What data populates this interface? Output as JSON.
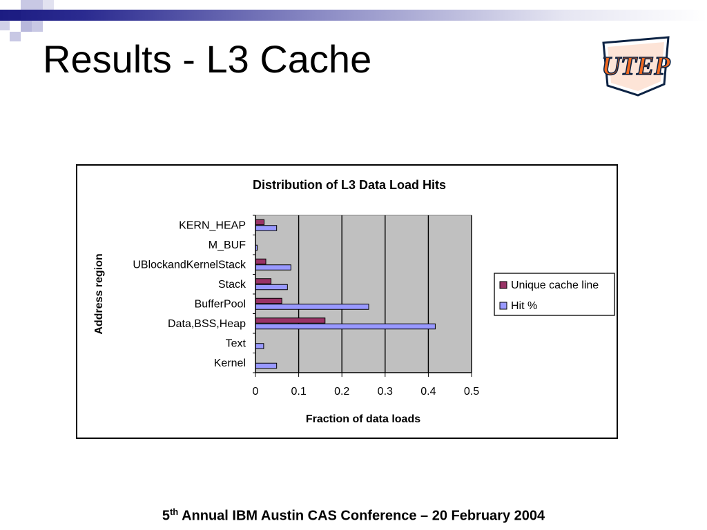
{
  "slide": {
    "title": "Results - L3 Cache",
    "footer": {
      "ordinal_number": "5",
      "ordinal_suffix": "th",
      "text": " Annual IBM Austin CAS Conference – 20 February 2004"
    },
    "logo_text": "UTEP",
    "colors": {
      "banner_dark": "#1c1c82",
      "banner_light": "#a9a9d6",
      "logo_orange": "#f26a21",
      "logo_navy": "#0d2344"
    }
  },
  "chart_data": {
    "type": "bar",
    "orientation": "horizontal",
    "title": "Distribution of L3 Data Load Hits",
    "xlabel": "Fraction of data loads",
    "ylabel": "Address region",
    "categories": [
      "KERN_HEAP",
      "M_BUF",
      "UBlockandKernelStack",
      "Stack",
      "BufferPool",
      "Data,BSS,Heap",
      "Text",
      "Kernel"
    ],
    "series": [
      {
        "name": "Unique cache line",
        "color": "#993366",
        "values": [
          0.02,
          0.0,
          0.024,
          0.036,
          0.061,
          0.161,
          0.0,
          0.0
        ]
      },
      {
        "name": "Hit %",
        "color": "#9999ff",
        "values": [
          0.049,
          0.004,
          0.082,
          0.074,
          0.262,
          0.416,
          0.019,
          0.049
        ]
      }
    ],
    "xlim": [
      0,
      0.5
    ],
    "xticks": [
      "0",
      "0.1",
      "0.2",
      "0.3",
      "0.4",
      "0.5"
    ],
    "xtick_values": [
      0,
      0.1,
      0.2,
      0.3,
      0.4,
      0.5
    ],
    "grid": true,
    "plot_background": "#c0c0c0",
    "legend_position": "right"
  }
}
